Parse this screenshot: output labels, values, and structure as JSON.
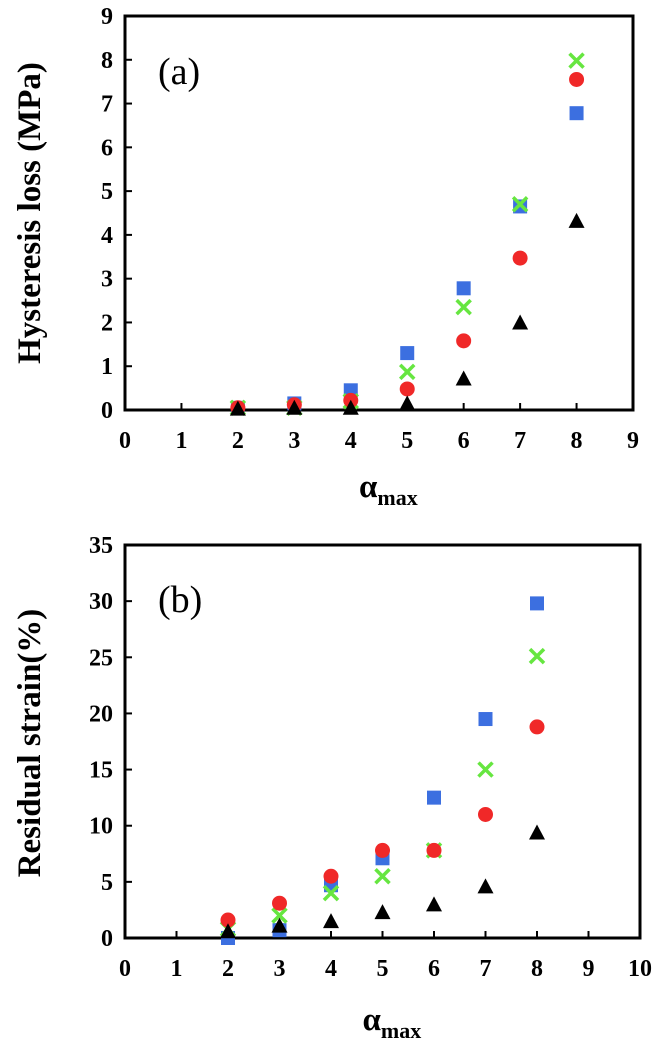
{
  "chart_data": [
    {
      "type": "scatter",
      "panel_label": "(a)",
      "ylabel": "Hysteresis loss (MPa)",
      "xlabel": "α",
      "xlabel_sub": "max",
      "xlim": [
        0,
        9
      ],
      "ylim": [
        0,
        9
      ],
      "xticks": [
        0,
        1,
        2,
        3,
        4,
        5,
        6,
        7,
        8,
        9
      ],
      "yticks": [
        0,
        1,
        2,
        3,
        4,
        5,
        6,
        7,
        8,
        9
      ],
      "grid": false,
      "series": [
        {
          "marker": "square",
          "color": "#3c6fe0",
          "x": [
            2,
            3,
            4,
            5,
            6,
            7,
            8
          ],
          "y": [
            0.05,
            0.15,
            0.45,
            1.3,
            2.78,
            4.65,
            6.78
          ]
        },
        {
          "marker": "cross",
          "color": "#66e640",
          "x": [
            2,
            3,
            4,
            5,
            6,
            7,
            8
          ],
          "y": [
            0.05,
            0.05,
            0.2,
            0.87,
            2.35,
            4.7,
            7.98
          ]
        },
        {
          "marker": "circle",
          "color": "#f02828",
          "x": [
            2,
            3,
            4,
            5,
            6,
            7,
            8
          ],
          "y": [
            0.05,
            0.12,
            0.22,
            0.48,
            1.58,
            3.47,
            7.55
          ]
        },
        {
          "marker": "triangle",
          "color": "#000000",
          "x": [
            2,
            3,
            4,
            5,
            6,
            7,
            8
          ],
          "y": [
            0.03,
            0.05,
            0.05,
            0.15,
            0.72,
            2.0,
            4.32
          ]
        }
      ]
    },
    {
      "type": "scatter",
      "panel_label": "(b)",
      "ylabel": "Residual strain(%)",
      "xlabel": "α",
      "xlabel_sub": "max",
      "xlim": [
        0,
        10
      ],
      "ylim": [
        0,
        35
      ],
      "xticks": [
        0,
        1,
        2,
        3,
        4,
        5,
        6,
        7,
        8,
        9,
        10
      ],
      "yticks": [
        0,
        5,
        10,
        15,
        20,
        25,
        30,
        35
      ],
      "grid": false,
      "series": [
        {
          "marker": "square",
          "color": "#3c6fe0",
          "x": [
            2,
            3,
            4,
            5,
            6,
            7,
            8
          ],
          "y": [
            0,
            0.7,
            4.7,
            7.1,
            12.5,
            19.5,
            29.8
          ]
        },
        {
          "marker": "cross",
          "color": "#66e640",
          "x": [
            2,
            3,
            4,
            5,
            6,
            7,
            8
          ],
          "y": [
            0.8,
            2.0,
            4.0,
            5.5,
            7.8,
            15.0,
            25.1
          ]
        },
        {
          "marker": "circle",
          "color": "#f02828",
          "x": [
            2,
            3,
            4,
            5,
            6,
            7,
            8
          ],
          "y": [
            1.6,
            3.1,
            5.5,
            7.8,
            7.8,
            11.0,
            18.8
          ]
        },
        {
          "marker": "triangle",
          "color": "#000000",
          "x": [
            2,
            3,
            4,
            5,
            6,
            7,
            8
          ],
          "y": [
            0.6,
            1.1,
            1.5,
            2.3,
            3.0,
            4.6,
            9.4
          ]
        }
      ]
    }
  ]
}
